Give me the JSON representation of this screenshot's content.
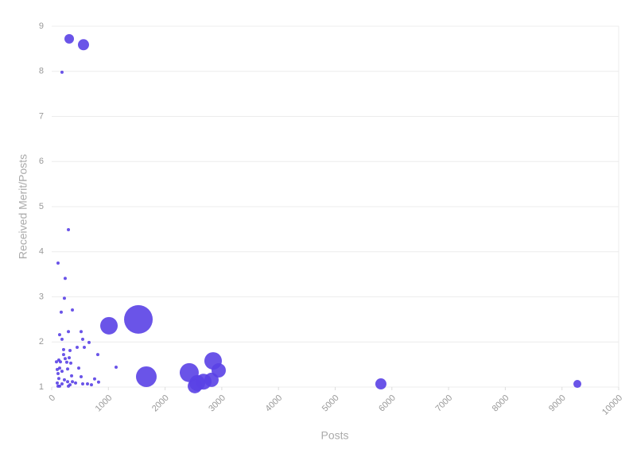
{
  "chart_data": {
    "type": "scatter",
    "x_label": "Posts",
    "y_label": "Received Merit/Posts",
    "color": "#5a41e6",
    "grid": true,
    "xlim": [
      0,
      10000
    ],
    "xticks": [
      0,
      1000,
      2000,
      3000,
      4000,
      5000,
      6000,
      7000,
      8000,
      9000,
      10000
    ],
    "ylim": [
      1,
      9
    ],
    "yticks": [
      1,
      2,
      3,
      4,
      5,
      6,
      7,
      8,
      9
    ],
    "x": [
      309,
      561,
      182,
      295,
      112,
      238,
      224,
      365,
      168,
      1529,
      1010,
      140,
      295,
      519,
      182,
      547,
      659,
      449,
      575,
      210,
      323,
      813,
      210,
      238,
      126,
      309,
      84,
      154,
      266,
      2847,
      337,
      140,
      477,
      1136,
      281,
      98,
      182,
      2945,
      2426,
      1669,
      112,
      519,
      126,
      351,
      757,
      2819,
      224,
      281,
      365,
      827,
      2679,
      2567,
      5806,
      9271,
      2525,
      98,
      182,
      323,
      421,
      547,
      631,
      701,
      140,
      295,
      112
    ],
    "y": [
      8.72,
      8.59,
      7.98,
      4.49,
      3.75,
      3.41,
      2.97,
      2.71,
      2.66,
      2.5,
      2.36,
      2.16,
      2.23,
      2.23,
      2.06,
      2.06,
      1.99,
      1.88,
      1.88,
      1.83,
      1.81,
      1.72,
      1.72,
      1.63,
      1.6,
      1.65,
      1.56,
      1.56,
      1.55,
      1.58,
      1.53,
      1.42,
      1.42,
      1.44,
      1.4,
      1.39,
      1.35,
      1.37,
      1.32,
      1.23,
      1.3,
      1.23,
      1.19,
      1.25,
      1.18,
      1.16,
      1.16,
      1.12,
      1.12,
      1.11,
      1.12,
      1.09,
      1.07,
      1.07,
      1.02,
      1.09,
      1.07,
      1.05,
      1.09,
      1.07,
      1.07,
      1.05,
      1.02,
      1.02,
      1.02
    ],
    "sizes": [
      6,
      7,
      2,
      2,
      2,
      2,
      2,
      2,
      2,
      18,
      11,
      2,
      2,
      2,
      2,
      2,
      2,
      2,
      2,
      2,
      2,
      2,
      2,
      2,
      2,
      2,
      2,
      2,
      2,
      11,
      2,
      2,
      2,
      2,
      2,
      2,
      2,
      9,
      12,
      13,
      2,
      2,
      2,
      2,
      2,
      9,
      2,
      2,
      2,
      2,
      10,
      10,
      7,
      5,
      9,
      2,
      2,
      2,
      2,
      2,
      2,
      2,
      2,
      2,
      2
    ]
  }
}
